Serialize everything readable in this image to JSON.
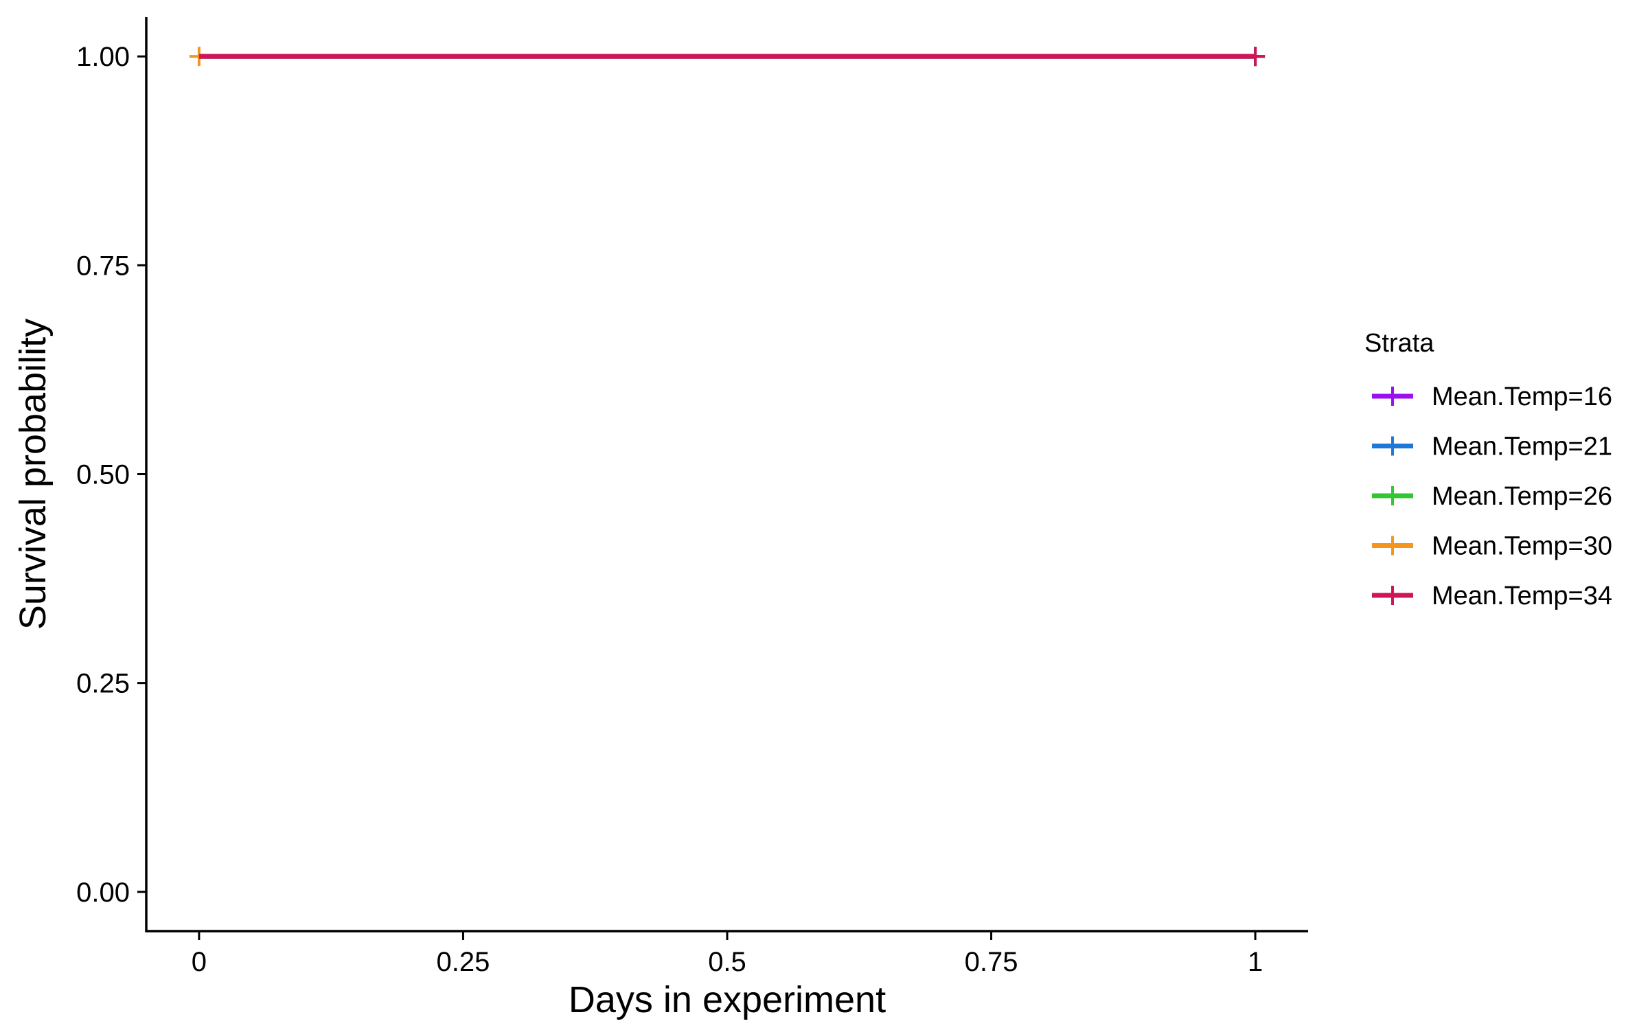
{
  "chart_data": {
    "type": "line",
    "subtype": "step",
    "title": "",
    "xlabel": "Days in experiment",
    "ylabel": "Survival probability",
    "xlim": [
      -0.05,
      1.05
    ],
    "ylim": [
      -0.047,
      1.047
    ],
    "x_ticks": [
      {
        "value": 0,
        "label": "0"
      },
      {
        "value": 0.25,
        "label": "0.25"
      },
      {
        "value": 0.5,
        "label": "0.5"
      },
      {
        "value": 0.75,
        "label": "0.75"
      },
      {
        "value": 1,
        "label": "1"
      }
    ],
    "y_ticks": [
      {
        "value": 0,
        "label": "0.00"
      },
      {
        "value": 0.25,
        "label": "0.25"
      },
      {
        "value": 0.5,
        "label": "0.50"
      },
      {
        "value": 0.75,
        "label": "0.75"
      },
      {
        "value": 1,
        "label": "1.00"
      }
    ],
    "grid": false,
    "legend": {
      "title": "Strata",
      "position": "right"
    },
    "series": [
      {
        "name": "Mean.Temp=16",
        "color": "#9B10F0",
        "x": [
          0,
          1
        ],
        "y": [
          1,
          1
        ],
        "censor_x": [
          1
        ]
      },
      {
        "name": "Mean.Temp=21",
        "color": "#1F78D8",
        "x": [
          0,
          1
        ],
        "y": [
          1,
          1
        ],
        "censor_x": [
          1
        ]
      },
      {
        "name": "Mean.Temp=26",
        "color": "#33C633",
        "x": [
          0,
          1
        ],
        "y": [
          1,
          1
        ],
        "censor_x": [
          1
        ]
      },
      {
        "name": "Mean.Temp=30",
        "color": "#F4961E",
        "x": [
          0
        ],
        "y": [
          1
        ],
        "censor_x": [
          0
        ]
      },
      {
        "name": "Mean.Temp=34",
        "color": "#D01457",
        "x": [
          0,
          1
        ],
        "y": [
          1,
          1
        ],
        "censor_x": [
          1
        ]
      }
    ]
  }
}
